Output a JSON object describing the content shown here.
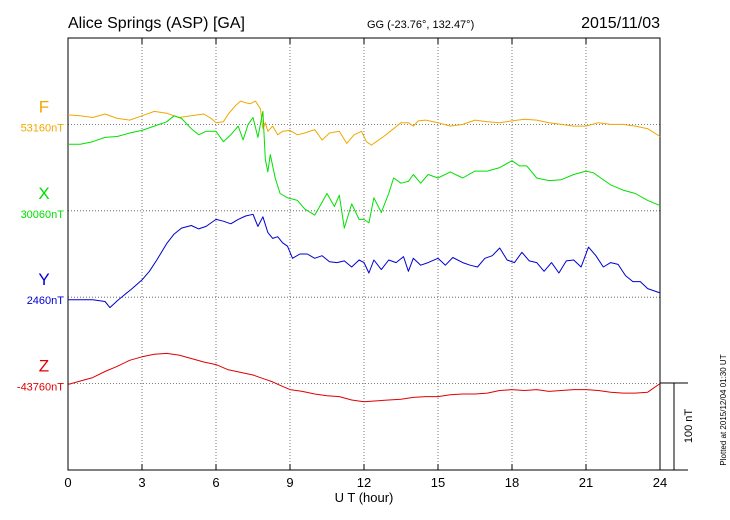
{
  "title": {
    "station": "Alice Springs (ASP)  [GA]",
    "coords": "GG (-23.76°, 132.47°)",
    "date": "2015/11/03"
  },
  "plotted": "Plotted at 2015/12/04 01:30 UT",
  "scale_label": "100 nT",
  "chart_data": {
    "type": "line",
    "xlabel": "U T (hour)",
    "xlim": [
      0,
      24
    ],
    "xticks": [
      "0",
      "3",
      "6",
      "9",
      "12",
      "15",
      "18",
      "21",
      "24"
    ],
    "units_per_band": 100,
    "grid": true,
    "series": [
      {
        "name": "F",
        "baseline_label": "53160nT",
        "color": "#f0a800",
        "x": [
          0,
          0.5,
          1,
          1.5,
          2,
          2.5,
          3,
          3.5,
          4,
          4.5,
          5,
          5.5,
          5.8,
          6,
          6.3,
          6.5,
          6.8,
          7,
          7.2,
          7.4,
          7.6,
          7.8,
          7.9,
          8,
          8.1,
          8.3,
          8.5,
          8.7,
          9,
          9.3,
          9.6,
          10,
          10.3,
          10.6,
          11,
          11.3,
          11.6,
          11.9,
          12.1,
          12.3,
          12.5,
          12.8,
          13.2,
          13.5,
          13.8,
          14,
          14.2,
          14.5,
          15,
          15.5,
          16,
          16.5,
          17,
          17.5,
          18,
          18.5,
          19,
          19.5,
          20,
          20.5,
          21,
          21.5,
          22,
          22.5,
          23,
          23.5,
          24
        ],
        "y": [
          53171,
          53170,
          53168,
          53172,
          53167,
          53165,
          53170,
          53175,
          53173,
          53168,
          53170,
          53172,
          53167,
          53162,
          53163,
          53172,
          53182,
          53187,
          53185,
          53184,
          53187,
          53178,
          53155,
          53162,
          53152,
          53158,
          53148,
          53152,
          53153,
          53148,
          53150,
          53154,
          53142,
          53150,
          53152,
          53138,
          53148,
          53152,
          53140,
          53136,
          53140,
          53146,
          53155,
          53162,
          53162,
          53158,
          53164,
          53165,
          53162,
          53158,
          53160,
          53165,
          53163,
          53162,
          53164,
          53166,
          53165,
          53162,
          53160,
          53158,
          53158,
          53162,
          53160,
          53160,
          53158,
          53155,
          53146
        ]
      },
      {
        "name": "X",
        "baseline_label": "30060nT",
        "color": "#00e000",
        "x": [
          0,
          0.5,
          1,
          1.5,
          2,
          2.5,
          3,
          3.5,
          4,
          4.3,
          4.6,
          5,
          5.3,
          5.6,
          6,
          6.3,
          6.6,
          6.9,
          7.1,
          7.3,
          7.5,
          7.7,
          7.9,
          8,
          8.1,
          8.2,
          8.4,
          8.6,
          8.9,
          9.3,
          9.6,
          10,
          10.3,
          10.5,
          10.8,
          11,
          11.2,
          11.5,
          11.8,
          12,
          12.2,
          12.4,
          12.7,
          13,
          13.2,
          13.5,
          13.8,
          14,
          14.3,
          14.6,
          15,
          15.5,
          16,
          16.5,
          17,
          17.5,
          18,
          18.3,
          18.6,
          19,
          19.5,
          20,
          20.5,
          21,
          21.3,
          21.6,
          22,
          22.5,
          23,
          23.5,
          24
        ],
        "y": [
          30137,
          30137,
          30140,
          30145,
          30146,
          30150,
          30153,
          30158,
          30163,
          30170,
          30167,
          30155,
          30148,
          30152,
          30152,
          30140,
          30148,
          30158,
          30142,
          30160,
          30168,
          30145,
          30175,
          30120,
          30105,
          30125,
          30098,
          30080,
          30075,
          30072,
          30062,
          30055,
          30070,
          30080,
          30065,
          30078,
          30040,
          30068,
          30050,
          30050,
          30046,
          30075,
          30058,
          30080,
          30098,
          30092,
          30094,
          30102,
          30092,
          30102,
          30098,
          30105,
          30098,
          30106,
          30106,
          30110,
          30118,
          30112,
          30112,
          30098,
          30095,
          30096,
          30102,
          30106,
          30104,
          30098,
          30090,
          30084,
          30080,
          30072,
          30066
        ]
      },
      {
        "name": "Y",
        "baseline_label": "2460nT",
        "color": "#0000d0",
        "x": [
          0,
          0.5,
          1,
          1.5,
          1.7,
          2,
          2.3,
          2.6,
          3,
          3.3,
          3.6,
          4,
          4.3,
          4.6,
          5,
          5.3,
          5.6,
          6,
          6.3,
          6.6,
          6.9,
          7.2,
          7.5,
          7.7,
          7.9,
          8.1,
          8.3,
          8.5,
          8.7,
          8.9,
          9.1,
          9.4,
          9.7,
          10,
          10.3,
          10.6,
          10.9,
          11.2,
          11.5,
          11.8,
          12,
          12.2,
          12.4,
          12.7,
          13,
          13.3,
          13.6,
          13.8,
          14,
          14.3,
          14.6,
          15,
          15.3,
          15.6,
          16,
          16.3,
          16.6,
          16.9,
          17.2,
          17.5,
          17.8,
          18.1,
          18.4,
          18.7,
          19,
          19.3,
          19.6,
          19.9,
          20.2,
          20.5,
          20.8,
          21.1,
          21.4,
          21.7,
          22,
          22.3,
          22.6,
          22.9,
          23.2,
          23.5,
          24
        ],
        "y": [
          2457,
          2457,
          2457,
          2455,
          2448,
          2456,
          2463,
          2470,
          2480,
          2490,
          2503,
          2522,
          2533,
          2540,
          2543,
          2539,
          2542,
          2550,
          2548,
          2545,
          2550,
          2554,
          2556,
          2542,
          2553,
          2535,
          2528,
          2530,
          2523,
          2519,
          2505,
          2510,
          2510,
          2505,
          2508,
          2501,
          2500,
          2502,
          2495,
          2503,
          2500,
          2488,
          2503,
          2492,
          2503,
          2500,
          2507,
          2490,
          2505,
          2497,
          2500,
          2505,
          2497,
          2506,
          2500,
          2497,
          2495,
          2505,
          2508,
          2517,
          2503,
          2500,
          2512,
          2502,
          2500,
          2490,
          2500,
          2488,
          2502,
          2503,
          2495,
          2518,
          2508,
          2495,
          2500,
          2498,
          2485,
          2478,
          2478,
          2470,
          2465
        ]
      },
      {
        "name": "Z",
        "baseline_label": "-43760nT",
        "color": "#e00000",
        "x": [
          0,
          0.5,
          1,
          1.5,
          2,
          2.5,
          3,
          3.5,
          4,
          4.5,
          5,
          5.5,
          6,
          6.5,
          7,
          7.5,
          8,
          8.3,
          8.6,
          9,
          9.5,
          10,
          10.5,
          11,
          11.5,
          12,
          12.5,
          13,
          13.5,
          14,
          14.5,
          15,
          15.5,
          16,
          16.5,
          17,
          17.5,
          18,
          18.5,
          19,
          19.5,
          20,
          20.5,
          21,
          21.5,
          22,
          22.5,
          23,
          23.5,
          24
        ],
        "y": [
          -43761,
          -43757,
          -43753,
          -43746,
          -43740,
          -43733,
          -43729,
          -43726,
          -43725,
          -43727,
          -43731,
          -43735,
          -43738,
          -43744,
          -43747,
          -43750,
          -43755,
          -43758,
          -43762,
          -43767,
          -43769,
          -43772,
          -43774,
          -43775,
          -43779,
          -43781,
          -43780,
          -43779,
          -43778,
          -43776,
          -43775,
          -43775,
          -43773,
          -43772,
          -43772,
          -43771,
          -43768,
          -43767,
          -43768,
          -43767,
          -43769,
          -43768,
          -43767,
          -43767,
          -43768,
          -43770,
          -43771,
          -43771,
          -43770,
          -43760
        ]
      }
    ]
  }
}
